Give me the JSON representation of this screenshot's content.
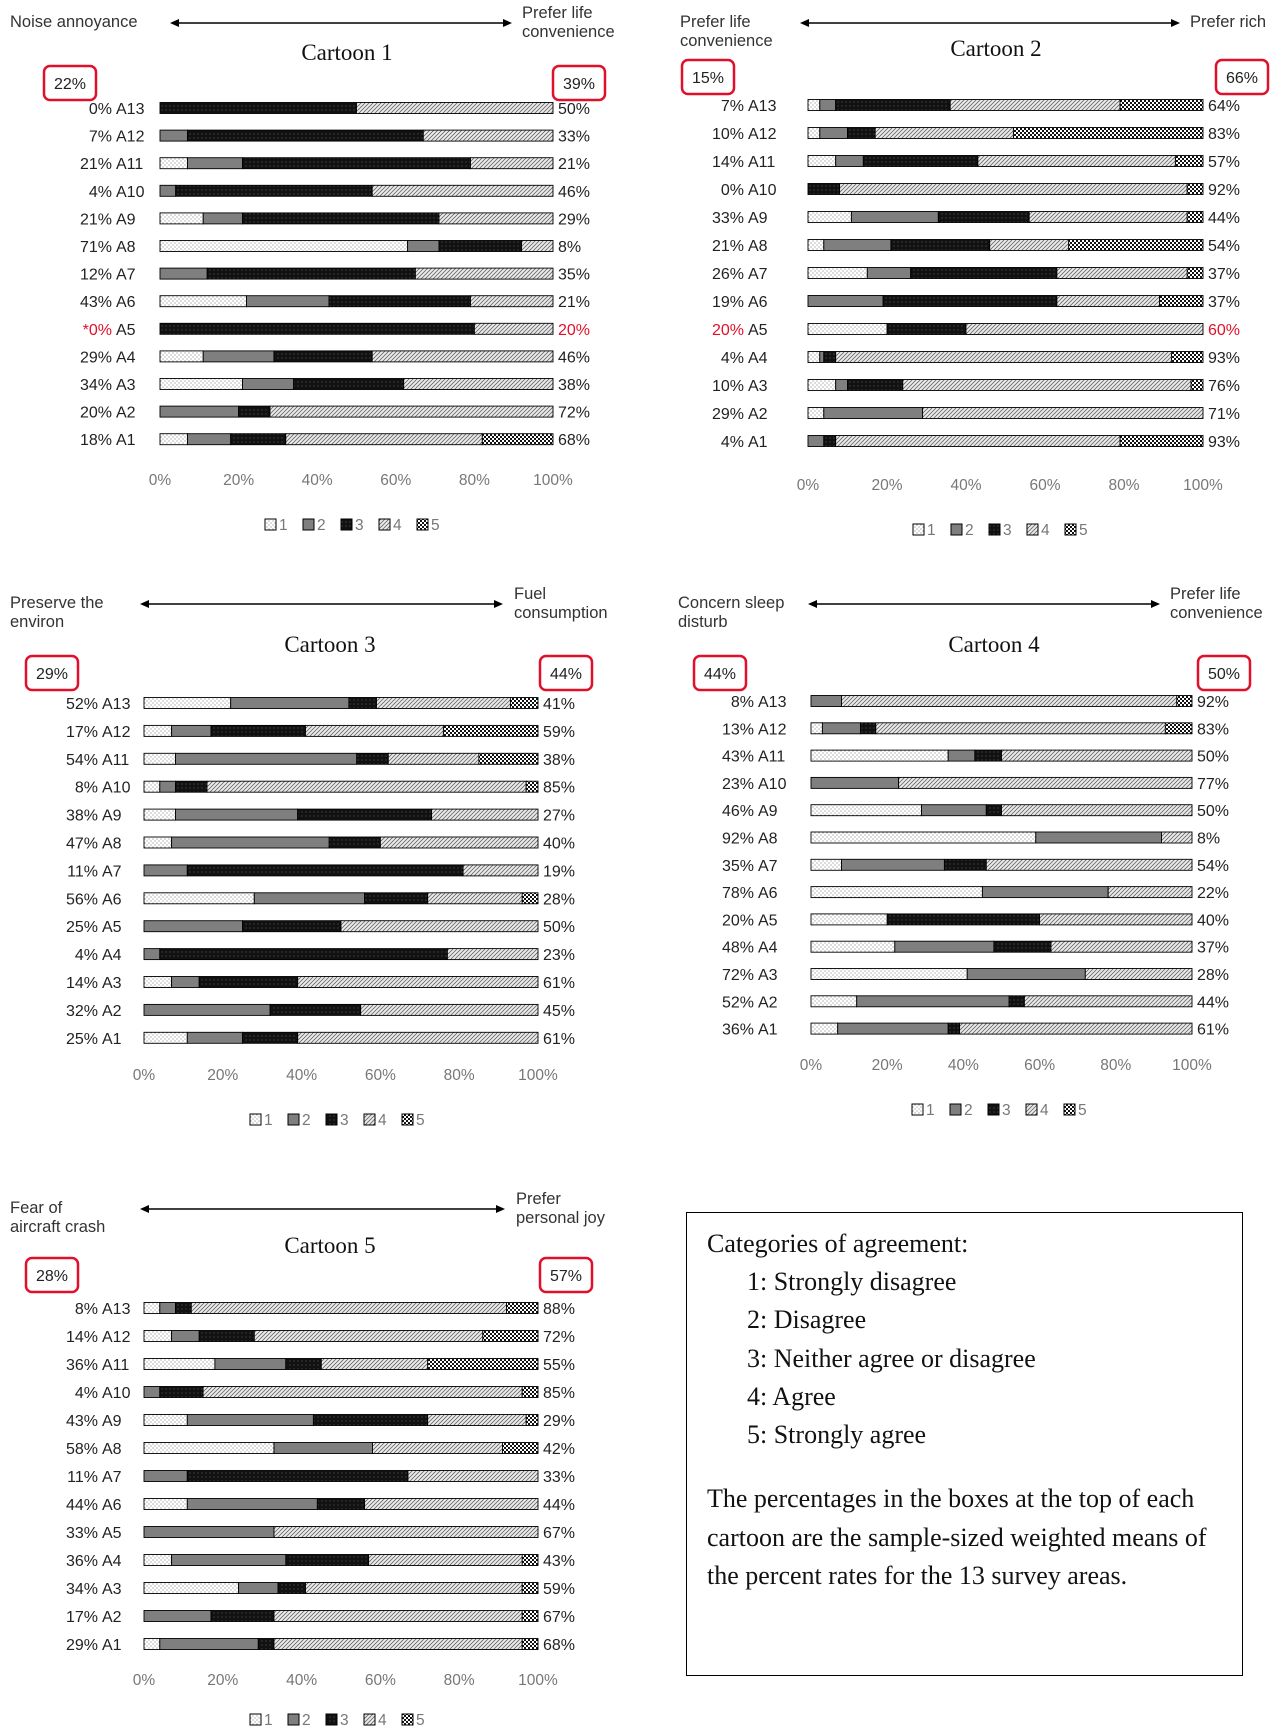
{
  "chart_data": [
    {
      "type": "bar",
      "stacked": true,
      "orientation": "horizontal",
      "title": "Cartoon 1",
      "left_label": [
        "Noise annoyance"
      ],
      "right_label": [
        "Prefer life",
        "convenience"
      ],
      "left_summary": "22%",
      "right_summary": "39%",
      "categories": [
        "A13",
        "A12",
        "A11",
        "A10",
        "A9",
        "A8",
        "A7",
        "A6",
        "A5",
        "A4",
        "A3",
        "A2",
        "A1"
      ],
      "left_pct": [
        "0%",
        "7%",
        "21%",
        "4%",
        "21%",
        "71%",
        "12%",
        "43%",
        "*0%",
        "29%",
        "34%",
        "20%",
        "18%"
      ],
      "right_pct": [
        "50%",
        "33%",
        "21%",
        "46%",
        "29%",
        "8%",
        "35%",
        "21%",
        "20%",
        "46%",
        "38%",
        "72%",
        "68%"
      ],
      "highlight_category": "A5",
      "series": [
        {
          "name": "1",
          "values": [
            0,
            0,
            7,
            0,
            11,
            63,
            0,
            22,
            0,
            11,
            21,
            0,
            7
          ]
        },
        {
          "name": "2",
          "values": [
            0,
            7,
            14,
            4,
            10,
            8,
            12,
            21,
            0,
            18,
            13,
            20,
            11
          ]
        },
        {
          "name": "3",
          "values": [
            50,
            60,
            58,
            50,
            50,
            21,
            53,
            36,
            80,
            25,
            28,
            8,
            14
          ]
        },
        {
          "name": "4",
          "values": [
            50,
            33,
            21,
            46,
            29,
            8,
            35,
            21,
            20,
            46,
            38,
            72,
            50
          ]
        },
        {
          "name": "5",
          "values": [
            0,
            0,
            0,
            0,
            0,
            0,
            0,
            0,
            0,
            0,
            0,
            0,
            18
          ]
        }
      ],
      "x_ticks": [
        "0%",
        "20%",
        "40%",
        "60%",
        "80%",
        "100%"
      ],
      "xlim": [
        0,
        100
      ],
      "legend": [
        "1",
        "2",
        "3",
        "4",
        "5"
      ]
    },
    {
      "type": "bar",
      "stacked": true,
      "orientation": "horizontal",
      "title": "Cartoon 2",
      "left_label": [
        "Prefer life",
        "convenience"
      ],
      "right_label": [
        "Prefer rich"
      ],
      "left_summary": "15%",
      "right_summary": "66%",
      "categories": [
        "A13",
        "A12",
        "A11",
        "A10",
        "A9",
        "A8",
        "A7",
        "A6",
        "A5",
        "A4",
        "A3",
        "A2",
        "A1"
      ],
      "left_pct": [
        "7%",
        "10%",
        "14%",
        "0%",
        "33%",
        "21%",
        "26%",
        "19%",
        "20%",
        "4%",
        "10%",
        "29%",
        "4%"
      ],
      "right_pct": [
        "64%",
        "83%",
        "57%",
        "92%",
        "44%",
        "54%",
        "37%",
        "37%",
        "60%",
        "93%",
        "76%",
        "71%",
        "93%"
      ],
      "highlight_category": "A5",
      "series": [
        {
          "name": "1",
          "values": [
            3,
            3,
            7,
            0,
            11,
            4,
            15,
            0,
            20,
            3,
            7,
            4,
            0
          ]
        },
        {
          "name": "2",
          "values": [
            4,
            7,
            7,
            0,
            22,
            17,
            11,
            19,
            0,
            1,
            3,
            25,
            4
          ]
        },
        {
          "name": "3",
          "values": [
            29,
            7,
            29,
            8,
            23,
            25,
            37,
            44,
            20,
            3,
            14,
            0,
            3
          ]
        },
        {
          "name": "4",
          "values": [
            43,
            35,
            50,
            88,
            40,
            20,
            33,
            26,
            60,
            85,
            73,
            71,
            72
          ]
        },
        {
          "name": "5",
          "values": [
            21,
            48,
            7,
            4,
            4,
            34,
            4,
            11,
            0,
            8,
            3,
            0,
            21
          ]
        }
      ],
      "x_ticks": [
        "0%",
        "20%",
        "40%",
        "60%",
        "80%",
        "100%"
      ],
      "xlim": [
        0,
        100
      ],
      "legend": [
        "1",
        "2",
        "3",
        "4",
        "5"
      ]
    },
    {
      "type": "bar",
      "stacked": true,
      "orientation": "horizontal",
      "title": "Cartoon 3",
      "left_label": [
        "Preserve the",
        "environ"
      ],
      "right_label": [
        "Fuel",
        "consumption"
      ],
      "left_summary": "29%",
      "right_summary": "44%",
      "categories": [
        "A13",
        "A12",
        "A11",
        "A10",
        "A9",
        "A8",
        "A7",
        "A6",
        "A5",
        "A4",
        "A3",
        "A2",
        "A1"
      ],
      "left_pct": [
        "52%",
        "17%",
        "54%",
        "8%",
        "38%",
        "47%",
        "11%",
        "56%",
        "25%",
        "4%",
        "14%",
        "32%",
        "25%"
      ],
      "right_pct": [
        "41%",
        "59%",
        "38%",
        "85%",
        "27%",
        "40%",
        "19%",
        "28%",
        "50%",
        "23%",
        "61%",
        "45%",
        "61%"
      ],
      "series": [
        {
          "name": "1",
          "values": [
            22,
            7,
            8,
            4,
            8,
            7,
            0,
            28,
            0,
            0,
            7,
            0,
            11
          ]
        },
        {
          "name": "2",
          "values": [
            30,
            10,
            46,
            4,
            31,
            40,
            11,
            28,
            25,
            4,
            7,
            32,
            14
          ]
        },
        {
          "name": "3",
          "values": [
            7,
            24,
            8,
            8,
            34,
            13,
            70,
            16,
            25,
            73,
            25,
            23,
            14
          ]
        },
        {
          "name": "4",
          "values": [
            34,
            35,
            23,
            81,
            27,
            40,
            19,
            24,
            50,
            23,
            61,
            45,
            61
          ]
        },
        {
          "name": "5",
          "values": [
            7,
            24,
            15,
            4,
            0,
            0,
            0,
            4,
            0,
            0,
            0,
            0,
            0
          ]
        }
      ],
      "x_ticks": [
        "0%",
        "20%",
        "40%",
        "60%",
        "80%",
        "100%"
      ],
      "xlim": [
        0,
        100
      ],
      "legend": [
        "1",
        "2",
        "3",
        "4",
        "5"
      ]
    },
    {
      "type": "bar",
      "stacked": true,
      "orientation": "horizontal",
      "title": "Cartoon 4",
      "left_label": [
        "Concern sleep",
        "disturb"
      ],
      "right_label": [
        "Prefer life",
        "convenience"
      ],
      "left_summary": "44%",
      "right_summary": "50%",
      "categories": [
        "A13",
        "A12",
        "A11",
        "A10",
        "A9",
        "A8",
        "A7",
        "A6",
        "A5",
        "A4",
        "A3",
        "A2",
        "A1"
      ],
      "left_pct": [
        "8%",
        "13%",
        "43%",
        "23%",
        "46%",
        "92%",
        "35%",
        "78%",
        "20%",
        "48%",
        "72%",
        "52%",
        "36%"
      ],
      "right_pct": [
        "92%",
        "83%",
        "50%",
        "77%",
        "50%",
        "8%",
        "54%",
        "22%",
        "40%",
        "37%",
        "28%",
        "44%",
        "61%"
      ],
      "series": [
        {
          "name": "1",
          "values": [
            0,
            3,
            36,
            0,
            29,
            59,
            8,
            45,
            20,
            22,
            41,
            12,
            7
          ]
        },
        {
          "name": "2",
          "values": [
            8,
            10,
            7,
            23,
            17,
            33,
            27,
            33,
            0,
            26,
            31,
            40,
            29
          ]
        },
        {
          "name": "3",
          "values": [
            0,
            4,
            7,
            0,
            4,
            0,
            11,
            0,
            40,
            15,
            0,
            4,
            3
          ]
        },
        {
          "name": "4",
          "values": [
            88,
            76,
            50,
            77,
            50,
            8,
            54,
            22,
            40,
            37,
            28,
            44,
            61
          ]
        },
        {
          "name": "5",
          "values": [
            4,
            7,
            0,
            0,
            0,
            0,
            0,
            0,
            0,
            0,
            0,
            0,
            0
          ]
        }
      ],
      "x_ticks": [
        "0%",
        "20%",
        "40%",
        "60%",
        "80%",
        "100%"
      ],
      "xlim": [
        0,
        100
      ],
      "legend": [
        "1",
        "2",
        "3",
        "4",
        "5"
      ]
    },
    {
      "type": "bar",
      "stacked": true,
      "orientation": "horizontal",
      "title": "Cartoon 5",
      "left_label": [
        "Fear of",
        "aircraft crash"
      ],
      "right_label": [
        "Prefer",
        "personal joy"
      ],
      "left_summary": "28%",
      "right_summary": "57%",
      "categories": [
        "A13",
        "A12",
        "A11",
        "A10",
        "A9",
        "A8",
        "A7",
        "A6",
        "A5",
        "A4",
        "A3",
        "A2",
        "A1"
      ],
      "left_pct": [
        "8%",
        "14%",
        "36%",
        "4%",
        "43%",
        "58%",
        "11%",
        "44%",
        "33%",
        "36%",
        "34%",
        "17%",
        "29%"
      ],
      "right_pct": [
        "88%",
        "72%",
        "55%",
        "85%",
        "29%",
        "42%",
        "33%",
        "44%",
        "67%",
        "43%",
        "59%",
        "67%",
        "68%"
      ],
      "series": [
        {
          "name": "1",
          "values": [
            4,
            7,
            18,
            0,
            11,
            33,
            0,
            11,
            0,
            7,
            24,
            0,
            4
          ]
        },
        {
          "name": "2",
          "values": [
            4,
            7,
            18,
            4,
            32,
            25,
            11,
            33,
            33,
            29,
            10,
            17,
            25
          ]
        },
        {
          "name": "3",
          "values": [
            4,
            14,
            9,
            11,
            29,
            0,
            56,
            12,
            0,
            21,
            7,
            16,
            4
          ]
        },
        {
          "name": "4",
          "values": [
            80,
            58,
            27,
            81,
            25,
            33,
            33,
            44,
            67,
            39,
            55,
            63,
            63
          ]
        },
        {
          "name": "5",
          "values": [
            8,
            14,
            28,
            4,
            3,
            9,
            0,
            0,
            0,
            4,
            4,
            4,
            4
          ]
        }
      ],
      "x_ticks": [
        "0%",
        "20%",
        "40%",
        "60%",
        "80%",
        "100%"
      ],
      "xlim": [
        0,
        100
      ],
      "legend": [
        "1",
        "2",
        "3",
        "4",
        "5"
      ]
    }
  ],
  "notes": {
    "heading": "Categories of agreement:",
    "categories": [
      "1: Strongly disagree",
      "2: Disagree",
      "3: Neither agree or disagree",
      "4: Agree",
      "5: Strongly agree"
    ],
    "paragraph": "The percentages in the boxes at the top of each cartoon are the sample-sized weighted means of the percent rates for the 13 survey areas."
  },
  "colors": {
    "highlight_box": "#e0102a",
    "highlight_text": "#e0102a",
    "fill_2": "#7f7f7f",
    "fill_3": "#111111"
  }
}
